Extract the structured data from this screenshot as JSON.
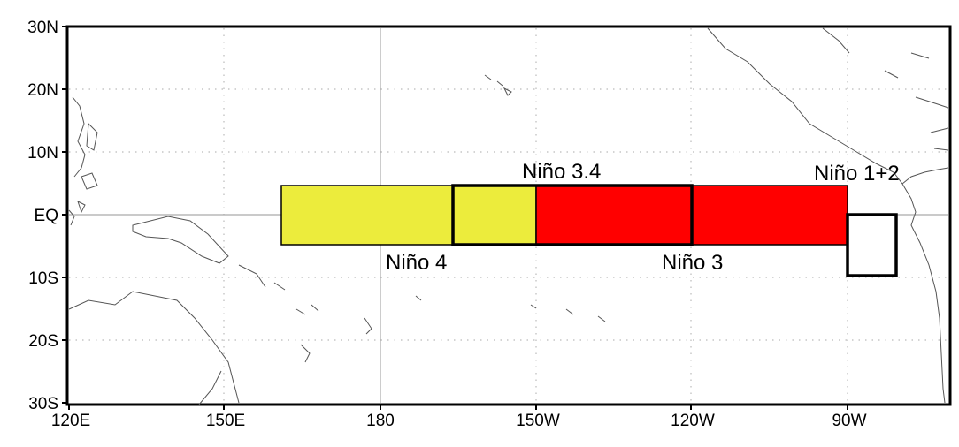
{
  "map": {
    "x_ticks": [
      "120E",
      "150E",
      "180",
      "150W",
      "120W",
      "90W"
    ],
    "y_ticks": [
      "30N",
      "20N",
      "10N",
      "EQ",
      "10S",
      "20S",
      "30S"
    ],
    "colors": {
      "nino4_fill": "#ecec3c",
      "nino3_fill": "#ff0000",
      "box_stroke": "#000000",
      "grid": "#bbbbbb"
    },
    "regions": [
      {
        "id": "nino4",
        "label": "Niño 4",
        "lon_range": [
          "160E",
          "150W"
        ],
        "lat_range": [
          "5S",
          "5N"
        ]
      },
      {
        "id": "nino34",
        "label": "Niño 3.4",
        "lon_range": [
          "170W",
          "120W"
        ],
        "lat_range": [
          "5S",
          "5N"
        ]
      },
      {
        "id": "nino3",
        "label": "Niño 3",
        "lon_range": [
          "150W",
          "90W"
        ],
        "lat_range": [
          "5S",
          "5N"
        ]
      },
      {
        "id": "nino12",
        "label": "Niño 1+2",
        "lon_range": [
          "90W",
          "80W"
        ],
        "lat_range": [
          "10S",
          "0"
        ]
      }
    ]
  }
}
